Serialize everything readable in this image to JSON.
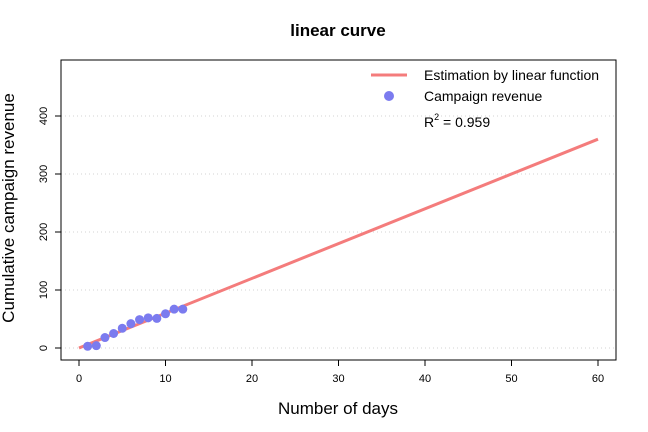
{
  "chart_data": {
    "type": "scatter",
    "title": "linear curve",
    "xlabel": "Number of days",
    "ylabel": "Cumulative campaign revenue",
    "xlim": [
      0,
      60
    ],
    "ylim": [
      0,
      400
    ],
    "xticks": [
      "0",
      "10",
      "20",
      "30",
      "40",
      "50",
      "60"
    ],
    "yticks": [
      "0",
      "100",
      "200",
      "300",
      "400"
    ],
    "grid": "horizontal-dotted",
    "legend_position": "top-right",
    "series": [
      {
        "name": "Campaign revenue",
        "kind": "points",
        "color": "#7b7bef",
        "x": [
          1,
          2,
          3,
          4,
          5,
          6,
          7,
          8,
          9,
          10,
          11,
          12
        ],
        "y": [
          3,
          4,
          18,
          25,
          34,
          42,
          49,
          52,
          51,
          59,
          67,
          67
        ]
      },
      {
        "name": "Estimation by linear function",
        "kind": "line",
        "color": "#f47c7c",
        "x": [
          0,
          60
        ],
        "y": [
          0,
          360
        ]
      }
    ],
    "annotation": {
      "r2_base": "R",
      "r2_exp": "2",
      "r2_value": " = 0.959"
    }
  }
}
